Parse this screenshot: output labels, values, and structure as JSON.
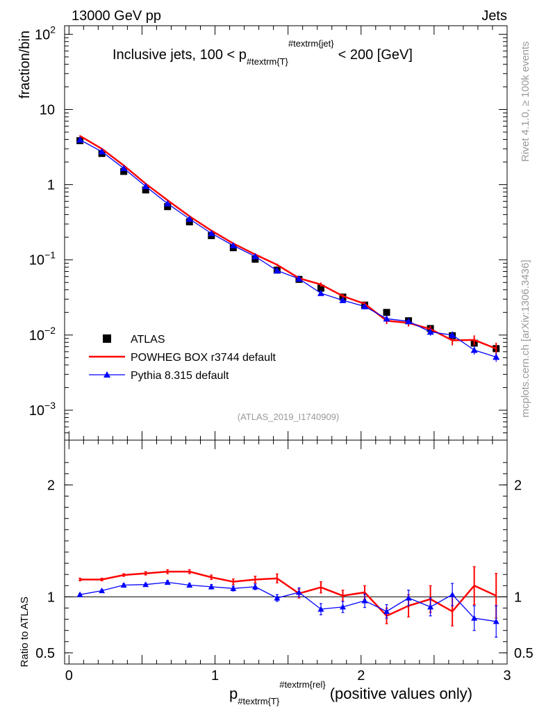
{
  "header": {
    "left": "13000 GeV pp",
    "right": "Jets"
  },
  "side_labels": {
    "upper": "Rivet 4.1.0, ≥ 100k events",
    "lower": "mcplots.cern.ch [arXiv:1306.3436]"
  },
  "chart_data": [
    {
      "type": "line",
      "title": "Inclusive jets, 100 < p",
      "title_sub": "#textrm{T}",
      "title_sup": "#textrm{jet}",
      "title_tail": "< 200 [GeV]",
      "ylabel": "fraction/bin",
      "yscale": "log",
      "ylim": [
        0.0004,
        130
      ],
      "xlim": [
        -0.03,
        3.0
      ],
      "y_ticks": [
        {
          "value": 100,
          "base": "10",
          "exp": "2"
        },
        {
          "value": 10,
          "base": "10",
          "exp": ""
        },
        {
          "value": 1,
          "base": "1",
          "exp": ""
        },
        {
          "value": 0.1,
          "base": "10",
          "exp": "−1"
        },
        {
          "value": 0.01,
          "base": "10",
          "exp": "−2"
        },
        {
          "value": 0.001,
          "base": "10",
          "exp": "−3"
        }
      ],
      "watermark": "(ATLAS_2019_I1740909)",
      "x": [
        0.075,
        0.225,
        0.375,
        0.525,
        0.675,
        0.825,
        0.975,
        1.125,
        1.275,
        1.425,
        1.575,
        1.725,
        1.875,
        2.025,
        2.175,
        2.325,
        2.475,
        2.625,
        2.775,
        2.925
      ],
      "series": [
        {
          "name": "ATLAS",
          "color": "#000000",
          "style": "marker-square",
          "values": [
            3.85,
            2.6,
            1.5,
            0.85,
            0.51,
            0.32,
            0.21,
            0.145,
            0.102,
            0.073,
            0.055,
            0.042,
            0.032,
            0.025,
            0.02,
            0.0155,
            0.0122,
            0.0098,
            0.0078,
            0.0066
          ],
          "errors": [
            0,
            0,
            0,
            0,
            0,
            0,
            0,
            0,
            0,
            0,
            0,
            0,
            0,
            0,
            0,
            0,
            0,
            0,
            0,
            0
          ]
        },
        {
          "name": "POWHEG BOX r3744 default",
          "color": "#ff0000",
          "style": "line",
          "values": [
            4.45,
            3.0,
            1.8,
            1.03,
            0.62,
            0.38,
            0.245,
            0.165,
            0.118,
            0.086,
            0.057,
            0.047,
            0.033,
            0.026,
            0.0155,
            0.0145,
            0.012,
            0.0085,
            0.0086,
            0.0066
          ],
          "errors": [
            0.08,
            0.06,
            0.04,
            0.02,
            0.012,
            0.008,
            0.006,
            0.005,
            0.004,
            0.003,
            0.003,
            0.003,
            0.002,
            0.002,
            0.0015,
            0.0015,
            0.0012,
            0.0012,
            0.0013,
            0.0013
          ]
        },
        {
          "name": "Pythia 8.315 default",
          "color": "#0000ff",
          "style": "line-triangle",
          "values": [
            3.95,
            2.75,
            1.65,
            0.95,
            0.56,
            0.35,
            0.225,
            0.155,
            0.111,
            0.072,
            0.056,
            0.036,
            0.029,
            0.024,
            0.0165,
            0.0152,
            0.011,
            0.01,
            0.0063,
            0.0051
          ],
          "errors": [
            0.05,
            0.04,
            0.03,
            0.015,
            0.01,
            0.007,
            0.005,
            0.004,
            0.003,
            0.003,
            0.003,
            0.002,
            0.002,
            0.002,
            0.0015,
            0.0015,
            0.0012,
            0.0012,
            0.0008,
            0.0007
          ]
        }
      ],
      "legend_position": "lower-left"
    },
    {
      "type": "line",
      "ylabel": "Ratio to ATLAS",
      "xlabel": "p",
      "xlabel_sub": "#textrm{T}",
      "xlabel_sup": "#textrm{rel}",
      "xlabel_tail": "(positive values only)",
      "ylim": [
        0.4,
        2.4
      ],
      "xlim": [
        -0.03,
        3.0
      ],
      "y_ticks": [
        {
          "value": 0.5,
          "label": "0.5"
        },
        {
          "value": 1,
          "label": "1"
        },
        {
          "value": 2,
          "label": "2"
        }
      ],
      "x_ticks": [
        {
          "value": 0,
          "label": "0"
        },
        {
          "value": 1,
          "label": "1"
        },
        {
          "value": 2,
          "label": "2"
        },
        {
          "value": 3,
          "label": "3"
        }
      ],
      "reference_line": 1,
      "x": [
        0.075,
        0.225,
        0.375,
        0.525,
        0.675,
        0.825,
        0.975,
        1.125,
        1.275,
        1.425,
        1.575,
        1.725,
        1.875,
        2.025,
        2.175,
        2.325,
        2.475,
        2.625,
        2.775,
        2.925
      ],
      "series": [
        {
          "name": "POWHEG BOX r3744 default",
          "color": "#ff0000",
          "values": [
            1.155,
            1.155,
            1.195,
            1.21,
            1.225,
            1.225,
            1.175,
            1.135,
            1.155,
            1.165,
            1.03,
            1.085,
            1.01,
            1.04,
            0.83,
            0.92,
            0.98,
            0.87,
            1.1,
            1.01
          ],
          "errors": [
            0.012,
            0.012,
            0.012,
            0.015,
            0.018,
            0.018,
            0.02,
            0.025,
            0.03,
            0.04,
            0.04,
            0.05,
            0.05,
            0.06,
            0.07,
            0.1,
            0.12,
            0.13,
            0.17,
            0.2
          ]
        },
        {
          "name": "Pythia 8.315 default",
          "color": "#0000ff",
          "values": [
            1.02,
            1.055,
            1.105,
            1.11,
            1.13,
            1.105,
            1.09,
            1.075,
            1.09,
            0.99,
            1.04,
            0.89,
            0.91,
            0.965,
            0.87,
            0.99,
            0.91,
            1.02,
            0.81,
            0.78
          ],
          "errors": [
            0.008,
            0.01,
            0.012,
            0.012,
            0.015,
            0.015,
            0.02,
            0.022,
            0.025,
            0.03,
            0.04,
            0.05,
            0.05,
            0.06,
            0.06,
            0.07,
            0.08,
            0.1,
            0.11,
            0.14
          ]
        }
      ]
    }
  ]
}
